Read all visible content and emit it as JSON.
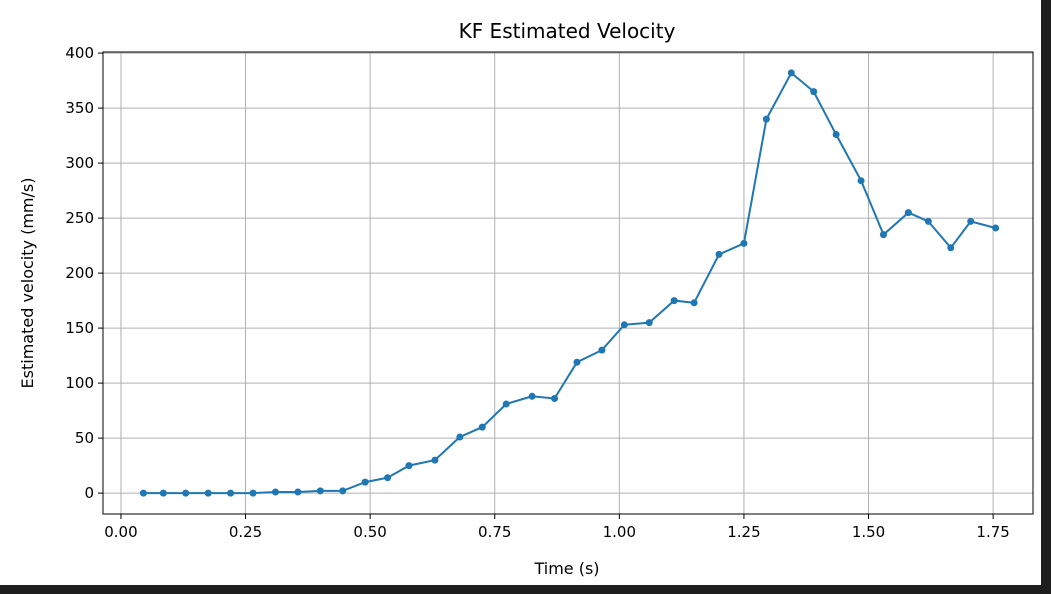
{
  "chart_data": {
    "type": "line",
    "title": "KF Estimated Velocity",
    "xlabel": "Time (s)",
    "ylabel": "Estimated velocity (mm/s)",
    "xlim": [
      -0.036,
      1.83
    ],
    "ylim": [
      -19,
      401
    ],
    "xticks": [
      0.0,
      0.25,
      0.5,
      0.75,
      1.0,
      1.25,
      1.5,
      1.75
    ],
    "xtick_labels": [
      "0.00",
      "0.25",
      "0.50",
      "0.75",
      "1.00",
      "1.25",
      "1.50",
      "1.75"
    ],
    "yticks": [
      0,
      50,
      100,
      150,
      200,
      250,
      300,
      350,
      400
    ],
    "ytick_labels": [
      "0",
      "50",
      "100",
      "150",
      "200",
      "250",
      "300",
      "350",
      "400"
    ],
    "grid": true,
    "color": "#1f77b4",
    "marker": "circle",
    "series": [
      {
        "x": [
          0.045,
          0.085,
          0.13,
          0.175,
          0.22,
          0.265,
          0.31,
          0.355,
          0.4,
          0.445,
          0.49,
          0.535,
          0.578,
          0.63,
          0.68,
          0.725,
          0.773,
          0.825,
          0.87,
          0.915,
          0.965,
          1.01,
          1.06,
          1.11,
          1.15,
          1.2,
          1.25,
          1.295,
          1.345,
          1.39,
          1.435,
          1.485,
          1.53,
          1.58,
          1.62,
          1.665,
          1.705,
          1.755
        ],
        "y": [
          0,
          0,
          0,
          0,
          0,
          0,
          1,
          1,
          2,
          2,
          10,
          14,
          25,
          30,
          51,
          60,
          81,
          88,
          86,
          119,
          130,
          153,
          155,
          175,
          173,
          217,
          227,
          340,
          382,
          365,
          326,
          284,
          235,
          255,
          247,
          223,
          247,
          241
        ]
      }
    ]
  }
}
